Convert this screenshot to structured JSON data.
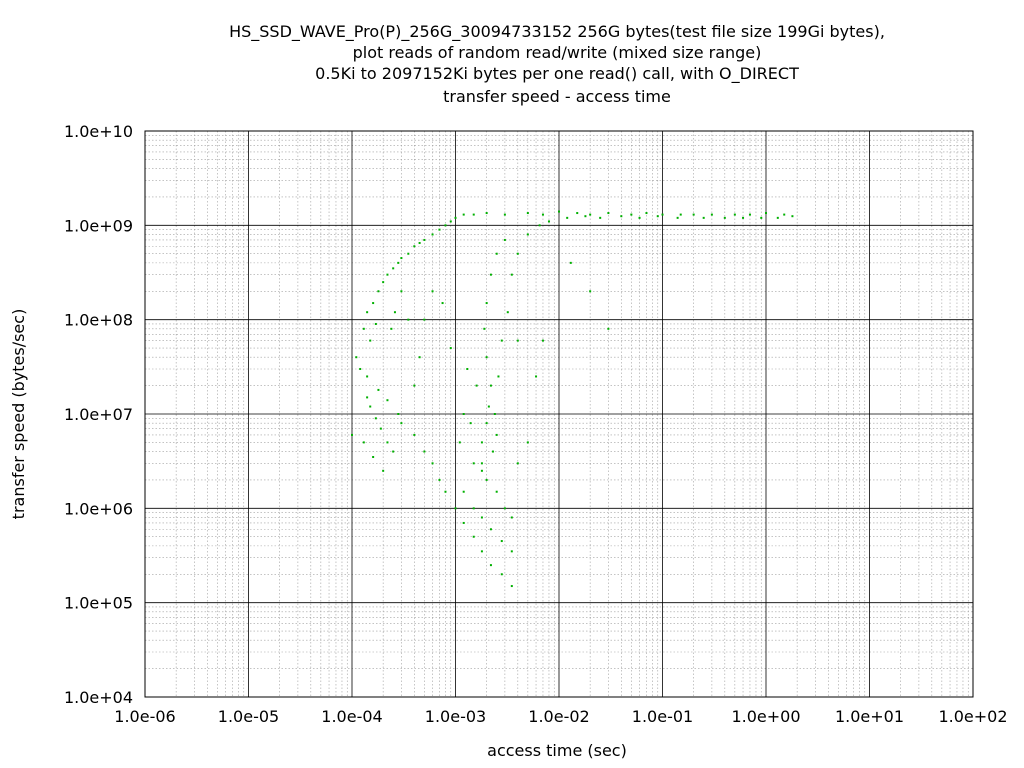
{
  "chart_data": {
    "type": "scatter",
    "title_lines": [
      "HS_SSD_WAVE_Pro(P)_256G_30094733152 256G bytes(test file size 199Gi bytes),",
      "plot reads of random read/write (mixed size range)",
      "0.5Ki to 2097152Ki bytes per one read() call, with O_DIRECT",
      "transfer speed - access time"
    ],
    "xlabel": "access time (sec)",
    "ylabel": "transfer speed (bytes/sec)",
    "x_scale": "log",
    "y_scale": "log",
    "xlim": [
      1e-06,
      100
    ],
    "ylim": [
      10000.0,
      10000000000.0
    ],
    "x_tick_labels": [
      "1.0e-06",
      "1.0e-05",
      "1.0e-04",
      "1.0e-03",
      "1.0e-02",
      "1.0e-01",
      "1.0e+00",
      "1.0e+01",
      "1.0e+02"
    ],
    "y_tick_labels": [
      "1.0e+04",
      "1.0e+05",
      "1.0e+06",
      "1.0e+07",
      "1.0e+08",
      "1.0e+09",
      "1.0e+10"
    ],
    "grid": true,
    "point_color": "#00b000",
    "series": [
      {
        "points": [
          [
            0.0001,
            6000000.0
          ],
          [
            0.00011,
            40000000.0
          ],
          [
            0.00012,
            30000000.0
          ],
          [
            0.00013,
            80000000.0
          ],
          [
            0.00014,
            120000000.0
          ],
          [
            0.00015,
            60000000.0
          ],
          [
            0.00016,
            150000000.0
          ],
          [
            0.00017,
            90000000.0
          ],
          [
            0.00018,
            200000000.0
          ],
          [
            0.0002,
            250000000.0
          ],
          [
            0.00022,
            300000000.0
          ],
          [
            0.00025,
            350000000.0
          ],
          [
            0.00028,
            400000000.0
          ],
          [
            0.0003,
            450000000.0
          ],
          [
            0.00035,
            500000000.0
          ],
          [
            0.0004,
            600000000.0
          ],
          [
            0.00045,
            650000000.0
          ],
          [
            0.0005,
            700000000.0
          ],
          [
            0.0006,
            800000000.0
          ],
          [
            0.0007,
            900000000.0
          ],
          [
            0.0008,
            1000000000.0
          ],
          [
            0.0009,
            1100000000.0
          ],
          [
            0.001,
            1200000000.0
          ],
          [
            0.0012,
            1300000000.0
          ],
          [
            0.0015,
            1300000000.0
          ],
          [
            0.002,
            1350000000.0
          ],
          [
            0.003,
            1300000000.0
          ],
          [
            0.005,
            1350000000.0
          ],
          [
            0.007,
            1300000000.0
          ],
          [
            0.01,
            1400000000.0
          ],
          [
            0.015,
            1350000000.0
          ],
          [
            0.02,
            1300000000.0
          ],
          [
            0.03,
            1350000000.0
          ],
          [
            0.05,
            1300000000.0
          ],
          [
            0.07,
            1350000000.0
          ],
          [
            0.1,
            1300000000.0
          ],
          [
            0.15,
            1300000000.0
          ],
          [
            0.2,
            1300000000.0
          ],
          [
            0.3,
            1300000000.0
          ],
          [
            0.5,
            1300000000.0
          ],
          [
            0.7,
            1300000000.0
          ],
          [
            1,
            1350000000.0
          ],
          [
            1.5,
            1300000000.0
          ],
          [
            1.8,
            1250000000.0
          ],
          [
            0.00014,
            15000000.0
          ],
          [
            0.00015,
            12000000.0
          ],
          [
            0.00017,
            9000000.0
          ],
          [
            0.00019,
            7000000.0
          ],
          [
            0.00022,
            5000000.0
          ],
          [
            0.00025,
            4000000.0
          ],
          [
            0.00013,
            5000000.0
          ],
          [
            0.00016,
            3500000.0
          ],
          [
            0.0002,
            2500000.0
          ],
          [
            0.00014,
            25000000.0
          ],
          [
            0.00018,
            18000000.0
          ],
          [
            0.00022,
            14000000.0
          ],
          [
            0.00028,
            10000000.0
          ],
          [
            0.0003,
            8000000.0
          ],
          [
            0.0004,
            6000000.0
          ],
          [
            0.0005,
            4000000.0
          ],
          [
            0.0006,
            3000000.0
          ],
          [
            0.0007,
            2000000.0
          ],
          [
            0.0008,
            1500000.0
          ],
          [
            0.001,
            1000000.0
          ],
          [
            0.0012,
            700000.0
          ],
          [
            0.0015,
            500000.0
          ],
          [
            0.0018,
            350000.0
          ],
          [
            0.0022,
            250000.0
          ],
          [
            0.0028,
            200000.0
          ],
          [
            0.0035,
            150000.0
          ],
          [
            0.0012,
            1500000.0
          ],
          [
            0.0015,
            1000000.0
          ],
          [
            0.0018,
            800000.0
          ],
          [
            0.0022,
            600000.0
          ],
          [
            0.0028,
            450000.0
          ],
          [
            0.0035,
            350000.0
          ],
          [
            0.0015,
            3000000.0
          ],
          [
            0.0018,
            2500000.0
          ],
          [
            0.002,
            2000000.0
          ],
          [
            0.0025,
            1500000.0
          ],
          [
            0.003,
            1000000.0
          ],
          [
            0.0035,
            800000.0
          ],
          [
            0.0018,
            5000000.0
          ],
          [
            0.002,
            8000000.0
          ],
          [
            0.0021,
            12000000.0
          ],
          [
            0.0022,
            20000000.0
          ],
          [
            0.002,
            40000000.0
          ],
          [
            0.0019,
            80000000.0
          ],
          [
            0.002,
            150000000.0
          ],
          [
            0.0022,
            300000000.0
          ],
          [
            0.0025,
            500000000.0
          ],
          [
            0.003,
            700000000.0
          ],
          [
            0.0018,
            3000000.0
          ],
          [
            0.0023,
            4000000.0
          ],
          [
            0.0025,
            6000000.0
          ],
          [
            0.0024,
            10000000.0
          ],
          [
            0.0026,
            25000000.0
          ],
          [
            0.0028,
            60000000.0
          ],
          [
            0.0032,
            120000000.0
          ],
          [
            0.0035,
            300000000.0
          ],
          [
            0.004,
            500000000.0
          ],
          [
            0.005,
            800000000.0
          ],
          [
            0.0012,
            10000000.0
          ],
          [
            0.0013,
            30000000.0
          ],
          [
            0.0014,
            8000000.0
          ],
          [
            0.0016,
            20000000.0
          ],
          [
            0.0011,
            5000000.0
          ],
          [
            0.004,
            3000000.0
          ],
          [
            0.005,
            5000000.0
          ],
          [
            0.006,
            25000000.0
          ],
          [
            0.004,
            60000000.0
          ],
          [
            0.007,
            60000000.0
          ],
          [
            0.0009,
            50000000.0
          ],
          [
            0.00075,
            150000000.0
          ],
          [
            0.0006,
            200000000.0
          ],
          [
            0.0005,
            100000000.0
          ],
          [
            0.00045,
            40000000.0
          ],
          [
            0.0004,
            20000000.0
          ],
          [
            0.00035,
            100000000.0
          ],
          [
            0.0003,
            200000000.0
          ],
          [
            0.00026,
            120000000.0
          ],
          [
            0.00024,
            80000000.0
          ],
          [
            0.0065,
            1000000000.0
          ],
          [
            0.008,
            1100000000.0
          ],
          [
            0.012,
            1200000000.0
          ],
          [
            0.018,
            1250000000.0
          ],
          [
            0.025,
            1200000000.0
          ],
          [
            0.04,
            1250000000.0
          ],
          [
            0.06,
            1200000000.0
          ],
          [
            0.09,
            1250000000.0
          ],
          [
            0.14,
            1200000000.0
          ],
          [
            0.25,
            1200000000.0
          ],
          [
            0.4,
            1200000000.0
          ],
          [
            0.6,
            1200000000.0
          ],
          [
            0.9,
            1200000000.0
          ],
          [
            1.3,
            1200000000.0
          ],
          [
            0.013,
            400000000.0
          ],
          [
            0.02,
            200000000.0
          ],
          [
            0.03,
            80000000.0
          ]
        ]
      }
    ]
  }
}
